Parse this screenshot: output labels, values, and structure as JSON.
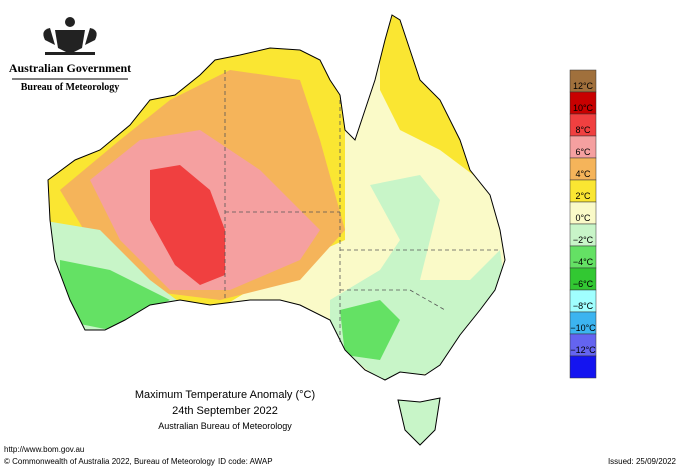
{
  "header": {
    "government": "Australian Government",
    "bureau": "Bureau of Meteorology"
  },
  "legend": {
    "colors": [
      "#a0703c",
      "#c80000",
      "#f04040",
      "#f5a0a0",
      "#f5b45a",
      "#fae632",
      "#fafac8",
      "#c8f5c8",
      "#64e164",
      "#32c832",
      "#a0ffff",
      "#3cb4f0",
      "#6464f0",
      "#1414f0"
    ],
    "labels": [
      "12°C",
      "10°C",
      "8°C",
      "6°C",
      "4°C",
      "2°C",
      "0°C",
      "−2°C",
      "−4°C",
      "−6°C",
      "−8°C",
      "−10°C",
      "−12°C"
    ]
  },
  "title": {
    "line1": "Maximum Temperature Anomaly (°C)",
    "line2": "24th September 2022",
    "line3": "Australian Bureau of Meteorology"
  },
  "footer": {
    "url": "http://www.bom.gov.au",
    "copyright": "© Commonwealth of Australia 2022, Bureau of Meteorology",
    "id_code": "ID code: AWAP",
    "issued": "Issued: 25/09/2022"
  }
}
